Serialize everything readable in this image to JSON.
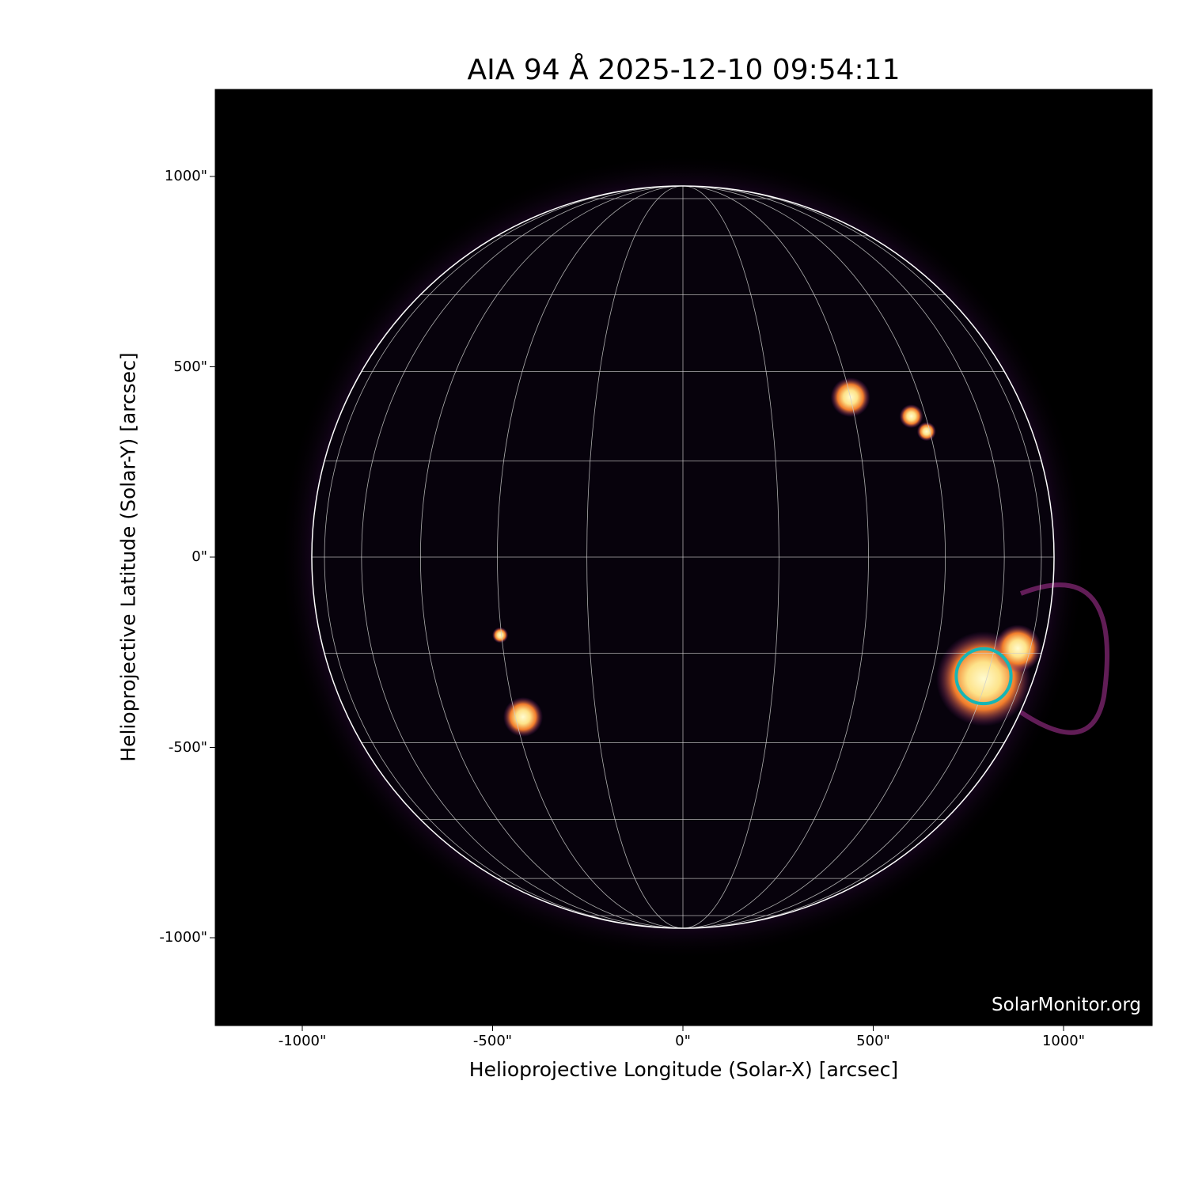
{
  "title": "AIA 94 Å 2025-12-10 09:54:11",
  "credit": "SolarMonitor.org",
  "colormap": "inferno (AIA 94)",
  "colors": {
    "background": "#000000",
    "grid": "#ffffff",
    "highlight_circle": "#17b5b5"
  },
  "chart_data": {
    "type": "image",
    "xlabel": "Helioprojective Longitude (Solar-X) [arcsec]",
    "ylabel": "Helioprojective Latitude (Solar-Y) [arcsec]",
    "xlim": [
      -1230,
      1230
    ],
    "ylim": [
      -1230,
      1230
    ],
    "xticks": [
      -1000,
      -500,
      0,
      500,
      1000
    ],
    "yticks": [
      -1000,
      -500,
      0,
      500,
      1000
    ],
    "xtick_labels": [
      "-1000\"",
      "-500\"",
      "0\"",
      "500\"",
      "1000\""
    ],
    "ytick_labels": [
      "-1000\"",
      "-500\"",
      "0\"",
      "500\"",
      "1000\""
    ],
    "solar_radius_arcsec": 975,
    "grid_spacing_deg": 15,
    "highlight": {
      "x": 790,
      "y": -313,
      "radius_arcsec": 72
    },
    "bright_regions": [
      {
        "x": 790,
        "y": -320,
        "size": 60
      },
      {
        "x": 880,
        "y": -240,
        "size": 30
      },
      {
        "x": 440,
        "y": 420,
        "size": 25
      },
      {
        "x": 600,
        "y": 370,
        "size": 15
      },
      {
        "x": 640,
        "y": 330,
        "size": 12
      },
      {
        "x": -420,
        "y": -420,
        "size": 25
      },
      {
        "x": -480,
        "y": -205,
        "size": 10
      }
    ]
  }
}
